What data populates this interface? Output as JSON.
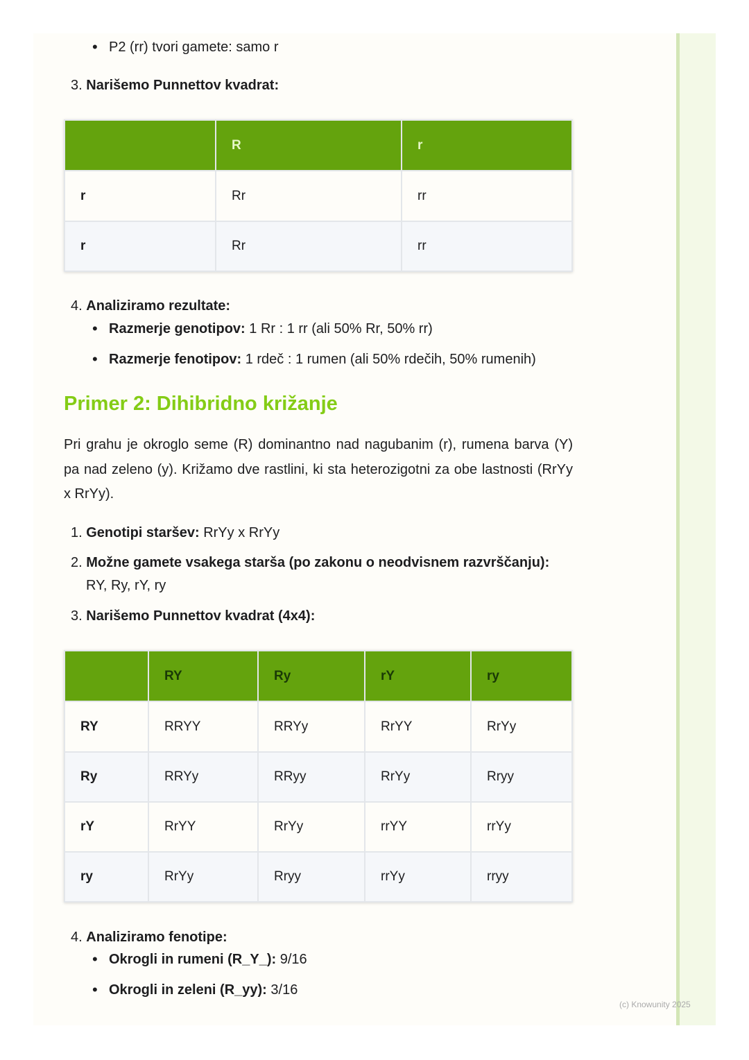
{
  "top_bullet": "P2 (rr) tvori gamete: samo r",
  "step3a": {
    "num": "3.",
    "label": "Narišemo Punnettov kvadrat:"
  },
  "table1": {
    "headers": [
      "",
      "R",
      "r"
    ],
    "rows": [
      [
        "r",
        "Rr",
        "rr"
      ],
      [
        "r",
        "Rr",
        "rr"
      ]
    ]
  },
  "step4a": {
    "num": "4.",
    "label": "Analiziramo rezultate:",
    "bullets": [
      {
        "label": "Razmerje genotipov:",
        "text": " 1 Rr : 1 rr (ali 50% Rr, 50% rr)"
      },
      {
        "label": "Razmerje fenotipov:",
        "text": " 1 rdeč : 1 rumen (ali 50% rdečih, 50% rumenih)"
      }
    ]
  },
  "heading": "Primer 2: Dihibridno križanje",
  "paragraph": "Pri grahu je okroglo seme (R) dominantno nad nagubanim (r), rumena barva (Y) pa nad zeleno (y). Križamo dve rastlini, ki sta heterozigotni za obe lastnosti (RrYy x RrYy).",
  "steps2": [
    {
      "num": "1.",
      "label": "Genotipi staršev:",
      "text": " RrYy x RrYy"
    },
    {
      "num": "2.",
      "label": "Možne gamete vsakega starša (po zakonu o neodvisnem razvrščanju):",
      "text": "RY, Ry, rY, ry"
    },
    {
      "num": "3.",
      "label": "Narišemo Punnettov kvadrat (4x4):"
    }
  ],
  "table2": {
    "headers": [
      "",
      "RY",
      "Ry",
      "rY",
      "ry"
    ],
    "rows": [
      [
        "RY",
        "RRYY",
        "RRYy",
        "RrYY",
        "RrYy"
      ],
      [
        "Ry",
        "RRYy",
        "RRyy",
        "RrYy",
        "Rryy"
      ],
      [
        "rY",
        "RrYY",
        "RrYy",
        "rrYY",
        "rrYy"
      ],
      [
        "ry",
        "RrYy",
        "Rryy",
        "rrYy",
        "rryy"
      ]
    ]
  },
  "step4b": {
    "num": "4.",
    "label": "Analiziramo fenotipe:",
    "bullets": [
      {
        "label": "Okrogli in rumeni (R_Y_):",
        "text": " 9/16"
      },
      {
        "label": "Okrogli in zeleni (R_yy):",
        "text": " 3/16"
      }
    ]
  },
  "footer": "(c) Knowunity 2025",
  "colors": {
    "header_green": "#64a30d",
    "heading_green": "#84cc16"
  }
}
